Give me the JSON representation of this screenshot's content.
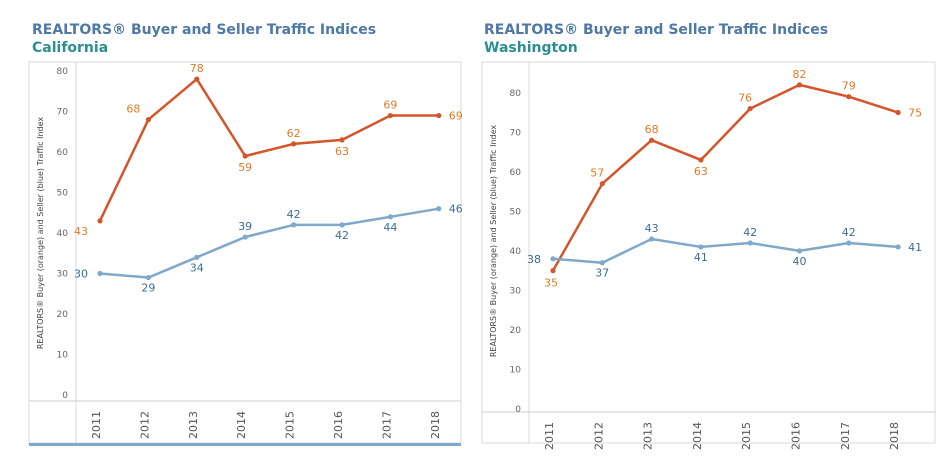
{
  "chart_data": [
    {
      "type": "line",
      "title": "REALTORS® Buyer and Seller Traffic Indices",
      "subtitle": "California",
      "ylabel": "REALTORS® Buyer (orange) and Seller (blue) Traffic Index",
      "xlabel": "",
      "x": [
        "2011",
        "2012",
        "2013",
        "2014",
        "2015",
        "2016",
        "2017",
        "2018"
      ],
      "ylim": [
        0,
        80
      ],
      "yticks": [
        0,
        10,
        20,
        30,
        40,
        50,
        60,
        70,
        80
      ],
      "series": [
        {
          "key": "buyer",
          "color": "#d4552a",
          "values": [
            43,
            68,
            78,
            59,
            62,
            63,
            69,
            69
          ]
        },
        {
          "key": "seller",
          "color": "#7fa8cb",
          "values": [
            30,
            29,
            34,
            39,
            42,
            42,
            44,
            46
          ]
        }
      ],
      "grid": false
    },
    {
      "type": "line",
      "title": "REALTORS® Buyer and Seller Traffic Indices",
      "subtitle": "Washington",
      "ylabel": "REALTORS® Buyer (orange) and Seller (blue) Traffic Index",
      "xlabel": "",
      "x": [
        "2011",
        "2012",
        "2013",
        "2014",
        "2015",
        "2016",
        "2017",
        "2018"
      ],
      "ylim": [
        0,
        85
      ],
      "yticks": [
        0,
        10,
        20,
        30,
        40,
        50,
        60,
        70,
        80
      ],
      "series": [
        {
          "key": "buyer",
          "color": "#d4552a",
          "values": [
            35,
            57,
            68,
            63,
            76,
            82,
            79,
            75
          ]
        },
        {
          "key": "seller",
          "color": "#7fa8cb",
          "values": [
            38,
            37,
            43,
            41,
            42,
            40,
            42,
            41
          ]
        }
      ],
      "grid": false
    }
  ]
}
